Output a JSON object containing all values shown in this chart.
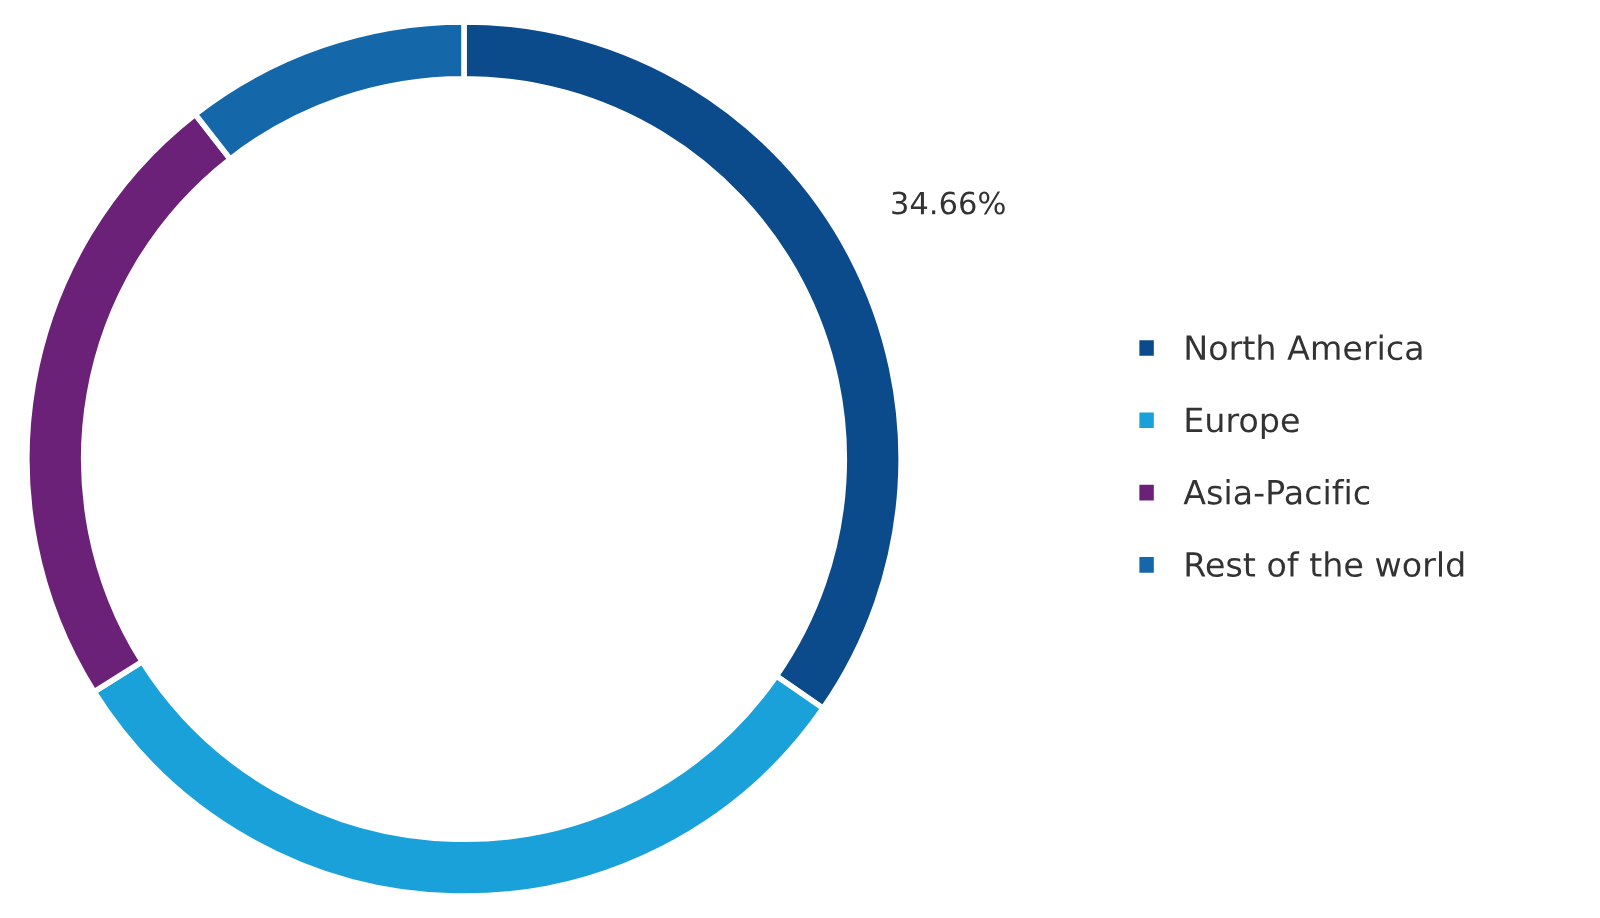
{
  "chart_data": {
    "type": "donut",
    "categories": [
      "North America",
      "Europe",
      "Asia-Pacific",
      "Rest of the world"
    ],
    "values": [
      34.66,
      31.4,
      23.4,
      10.54
    ],
    "colors": [
      "#0b4a8b",
      "#1ba1d9",
      "#6b2178",
      "#1467a9"
    ],
    "value_labels": [
      "34.66%",
      null,
      null,
      null
    ],
    "legend": "right"
  }
}
